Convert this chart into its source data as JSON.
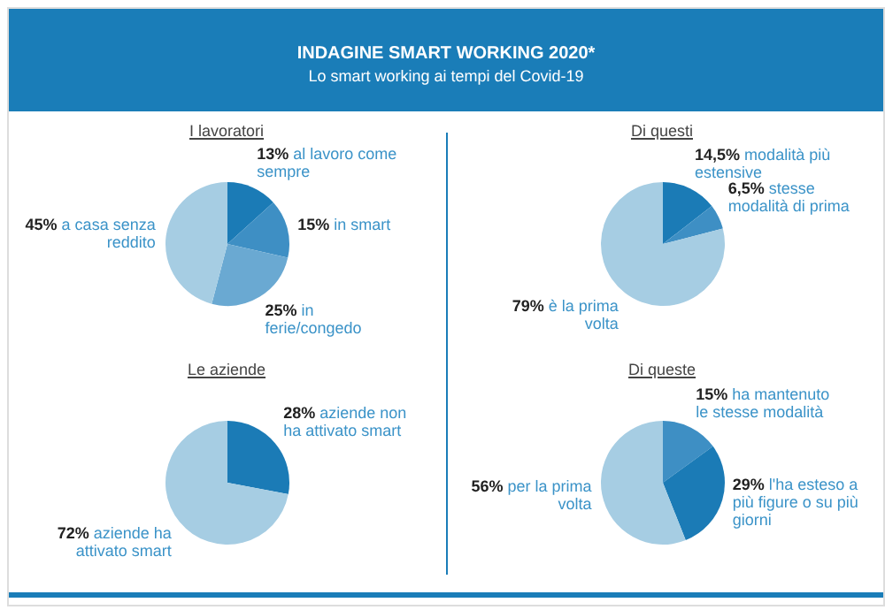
{
  "chart_data": [
    {
      "type": "other",
      "title": "INDAGINE SMART WORKING 2020*",
      "subtitle": "Lo smart working ai tempi del Covid-19"
    },
    {
      "type": "pie",
      "title": "I lavoratori",
      "categories": [
        "al lavoro come sempre",
        "in smart",
        "in ferie/congedo",
        "a casa senza reddito"
      ],
      "values": [
        13,
        15,
        25,
        45
      ],
      "value_labels": [
        "13%",
        "15%",
        "25%",
        "45%"
      ],
      "colors": [
        "#1b7bb6",
        "#3e8fc4",
        "#6aa9d2",
        "#a6cde3"
      ]
    },
    {
      "type": "pie",
      "title": "Di questi",
      "categories": [
        "modalità più estensive",
        "stesse modalità di prima",
        "è la prima volta"
      ],
      "values": [
        14.5,
        6.5,
        79
      ],
      "value_labels": [
        "14,5%",
        "6,5%",
        "79%"
      ],
      "colors": [
        "#1b7bb6",
        "#3e8fc4",
        "#a6cde3"
      ]
    },
    {
      "type": "pie",
      "title": "Le aziende",
      "categories": [
        "aziende non ha attivato smart",
        "aziende ha attivato smart"
      ],
      "values": [
        28,
        72
      ],
      "value_labels": [
        "28%",
        "72%"
      ],
      "colors": [
        "#1b7bb6",
        "#a6cde3"
      ]
    },
    {
      "type": "pie",
      "title": "Di queste",
      "categories": [
        "ha mantenuto le stesse modalità",
        "l'ha esteso a più figure o su più giorni",
        "per la prima volta"
      ],
      "values": [
        15,
        29,
        56
      ],
      "value_labels": [
        "15%",
        "29%",
        "56%"
      ],
      "colors": [
        "#3e8fc4",
        "#1b7bb6",
        "#a6cde3"
      ]
    }
  ]
}
